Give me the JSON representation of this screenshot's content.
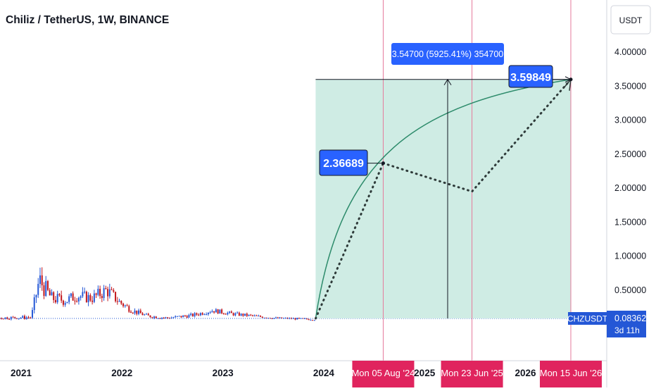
{
  "header": {
    "title": "Chiliz / TetherUS, 1W, BINANCE",
    "currency_button": "USDT"
  },
  "colors": {
    "up_candle": "#2457d6",
    "down_candle": "#c2151b",
    "projection_fill": "#cfece4",
    "projection_curve": "#2d8b6b",
    "date_marker": "#e0245e",
    "vline": "#e57a9c",
    "label_blue": "#2962ff",
    "text": "#131722",
    "axis_text": "#131722"
  },
  "chart_data": {
    "type": "candlestick",
    "symbol": "CHZUSDT",
    "interval": "1W",
    "y_axis": {
      "ylim": [
        -0.75,
        4.33
      ],
      "ticks": [
        0.5,
        1.0,
        1.5,
        2.0,
        2.5,
        3.0,
        3.5,
        4.0
      ],
      "tick_labels": [
        "0.50000",
        "1.00000",
        "1.50000",
        "2.00000",
        "2.50000",
        "3.00000",
        "3.50000",
        "4.00000"
      ]
    },
    "x_axis": {
      "labels": [
        "2021",
        "2022",
        "2023",
        "2024",
        "2025",
        "2026"
      ],
      "label_years": [
        2021.0,
        2022.0,
        2023.0,
        2024.0,
        2025.0,
        2026.0
      ]
    },
    "price_envelope": {
      "t": [
        2020.0,
        2021.1,
        2021.18,
        2021.3,
        2021.45,
        2021.55,
        2021.7,
        2021.85,
        2021.97,
        2022.1,
        2022.25,
        2022.45,
        2022.7,
        2022.9,
        2023.1,
        2023.3,
        2023.5,
        2023.7,
        2023.9
      ],
      "mid": [
        0.07,
        0.1,
        0.65,
        0.38,
        0.35,
        0.42,
        0.38,
        0.5,
        0.33,
        0.2,
        0.12,
        0.09,
        0.13,
        0.2,
        0.15,
        0.12,
        0.09,
        0.08,
        0.07
      ],
      "spread": [
        0.01,
        0.04,
        0.25,
        0.14,
        0.12,
        0.13,
        0.12,
        0.16,
        0.1,
        0.06,
        0.04,
        0.03,
        0.04,
        0.05,
        0.04,
        0.03,
        0.02,
        0.02,
        0.02
      ],
      "end_year": 2023.92
    },
    "projection": {
      "start_year": 2023.92,
      "start_price": 0.08362,
      "target_year": 2026.45,
      "target_price": 3.59849,
      "mid_point_year": 2024.59,
      "mid_point_price": 2.36689,
      "dip_year": 2025.47,
      "dip_price": 1.95
    },
    "measure_label": "3.54700 (5925.41%) 354700",
    "target_label": "3.59849",
    "mid_label": "2.36689",
    "last_price": "0.08362",
    "countdown": "3d 11h",
    "date_markers": [
      {
        "year": 2024.59,
        "label": "Mon 05 Aug '24"
      },
      {
        "year": 2025.47,
        "label": "Mon 23 Jun '25"
      },
      {
        "year": 2026.45,
        "label": "Mon 15 Jun '26"
      }
    ]
  }
}
